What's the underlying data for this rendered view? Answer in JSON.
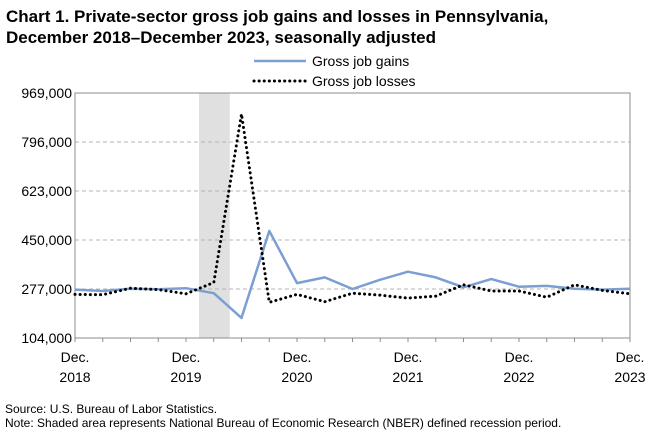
{
  "title_line1": "Chart 1. Private-sector gross job gains and losses in Pennsylvania,",
  "title_line2": "December 2018–December 2023, seasonally adjusted",
  "source_note": "Source: U.S. Bureau of Labor Statistics.",
  "shading_note": "Note: Shaded area represents National Bureau of Economic Research (NBER) defined  recession period.",
  "chart_data": {
    "type": "line",
    "title": "Chart 1. Private-sector gross job gains and losses in Pennsylvania, December 2018–December 2023, seasonally adjusted",
    "xlabel": "",
    "ylabel": "",
    "ylim": [
      104000,
      969000
    ],
    "yticks": [
      104000,
      277000,
      450000,
      623000,
      796000,
      969000
    ],
    "ytick_labels": [
      "104,000",
      "277,000",
      "450,000",
      "623,000",
      "796,000",
      "969,000"
    ],
    "x": [
      "Dec 2018",
      "Mar 2019",
      "Jun 2019",
      "Sep 2019",
      "Dec 2019",
      "Mar 2020",
      "Jun 2020",
      "Sep 2020",
      "Dec 2020",
      "Mar 2021",
      "Jun 2021",
      "Sep 2021",
      "Dec 2021",
      "Mar 2022",
      "Jun 2022",
      "Sep 2022",
      "Dec 2022",
      "Mar 2023",
      "Jun 2023",
      "Sep 2023",
      "Dec 2023"
    ],
    "xtick_labels": [
      {
        "month": "Dec.",
        "year": "2018",
        "index": 0
      },
      {
        "month": "Dec.",
        "year": "2019",
        "index": 4
      },
      {
        "month": "Dec.",
        "year": "2020",
        "index": 8
      },
      {
        "month": "Dec.",
        "year": "2021",
        "index": 12
      },
      {
        "month": "Dec.",
        "year": "2022",
        "index": 16
      },
      {
        "month": "Dec.",
        "year": "2023",
        "index": 20
      }
    ],
    "recession_shading": {
      "from": "Dec 2019",
      "to": "Mar 2020",
      "color": "#e0e0e0"
    },
    "grid": "horizontal-dashed",
    "legend": "top-center",
    "series": [
      {
        "name": "Gross job gains",
        "color": "#7b9fd3",
        "style": "solid",
        "values": [
          275000,
          270000,
          278000,
          276000,
          280000,
          262000,
          175000,
          482000,
          298000,
          318000,
          277000,
          310000,
          338000,
          318000,
          283000,
          312000,
          285000,
          288000,
          278000,
          275000,
          278000
        ]
      },
      {
        "name": "Gross job losses",
        "color": "#000000",
        "style": "dotted",
        "values": [
          258000,
          257000,
          280000,
          275000,
          260000,
          300000,
          895000,
          230000,
          258000,
          232000,
          262000,
          255000,
          245000,
          252000,
          292000,
          270000,
          270000,
          248000,
          292000,
          272000,
          260000
        ]
      }
    ]
  }
}
